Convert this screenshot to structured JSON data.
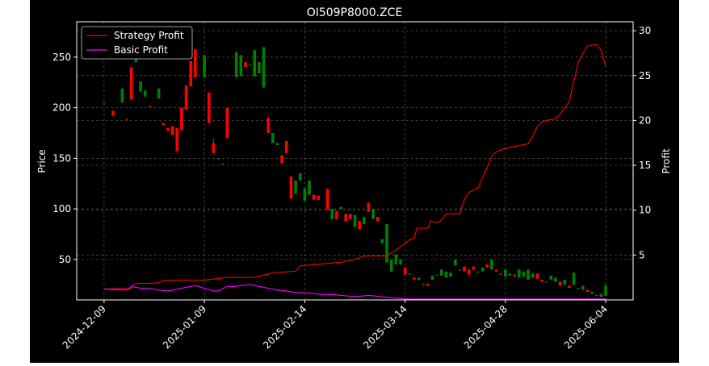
{
  "chart_data": {
    "type": "candlestick",
    "title": "OI509P8000.ZCE",
    "ylabel_left": "Price",
    "ylabel_right": "Profit",
    "xlabel": "",
    "ylim_left": [
      10,
      285
    ],
    "ylim_right": [
      0,
      31
    ],
    "y_ticks_left": [
      50,
      100,
      150,
      200,
      250
    ],
    "y_ticks_right": [
      5,
      10,
      15,
      20,
      25,
      30
    ],
    "x_ticks": [
      {
        "label": "2024-12-09",
        "t": 0
      },
      {
        "label": "2025-01-09",
        "t": 22
      },
      {
        "label": "2025-02-14",
        "t": 44
      },
      {
        "label": "2025-03-14",
        "t": 66
      },
      {
        "label": "2025-04-28",
        "t": 88
      },
      {
        "label": "2025-06-04",
        "t": 110
      }
    ],
    "x_range": [
      -6,
      116
    ],
    "grid": true,
    "legend_position": "upper-left",
    "colors": {
      "background": "#000000",
      "text": "#ffffff",
      "up": "#008000",
      "down": "#ff0000",
      "strategy": "#ff0000",
      "basic": "#ff00ff",
      "grid": "#555555"
    },
    "series": [
      {
        "name": "Strategy Profit",
        "axis": "right",
        "color": "#ff0000",
        "points": [
          [
            0,
            1.2
          ],
          [
            6,
            1.3
          ],
          [
            6.6,
            1.8
          ],
          [
            12,
            1.9
          ],
          [
            13,
            2.2
          ],
          [
            22,
            2.2
          ],
          [
            27,
            2.5
          ],
          [
            33,
            2.5
          ],
          [
            37,
            3.0
          ],
          [
            42,
            3.2
          ],
          [
            43,
            3.8
          ],
          [
            52,
            4.2
          ],
          [
            55,
            4.5
          ],
          [
            57,
            4.9
          ],
          [
            62,
            4.9
          ],
          [
            65,
            5.9
          ],
          [
            67,
            6.7
          ],
          [
            68,
            6.9
          ],
          [
            68.6,
            8.0
          ],
          [
            71,
            8.0
          ],
          [
            71.6,
            8.8
          ],
          [
            73,
            8.6
          ],
          [
            74,
            8.9
          ],
          [
            75,
            9.6
          ],
          [
            78,
            9.6
          ],
          [
            79,
            11.2
          ],
          [
            80,
            12.0
          ],
          [
            82,
            12.5
          ],
          [
            84,
            14.8
          ],
          [
            85,
            16.0
          ],
          [
            86,
            16.5
          ],
          [
            88,
            16.9
          ],
          [
            90,
            17.1
          ],
          [
            93,
            17.4
          ],
          [
            94,
            18.3
          ],
          [
            95,
            19.3
          ],
          [
            96,
            19.8
          ],
          [
            97,
            20.0
          ],
          [
            99,
            20.2
          ],
          [
            100,
            20.7
          ],
          [
            101,
            21.4
          ],
          [
            102,
            22.1
          ],
          [
            103,
            24.4
          ],
          [
            104,
            26.5
          ],
          [
            105,
            27.5
          ],
          [
            106,
            28.3
          ],
          [
            108,
            28.5
          ],
          [
            109,
            27.8
          ],
          [
            110,
            26.0
          ]
        ]
      },
      {
        "name": "Basic Profit",
        "axis": "right",
        "color": "#ff00ff",
        "points": [
          [
            0,
            1.2
          ],
          [
            5,
            1.1
          ],
          [
            6,
            1.5
          ],
          [
            8,
            1.3
          ],
          [
            10,
            1.3
          ],
          [
            12,
            1.1
          ],
          [
            14,
            1.0
          ],
          [
            17,
            1.3
          ],
          [
            20,
            1.6
          ],
          [
            22,
            1.3
          ],
          [
            24,
            1.0
          ],
          [
            25,
            1.0
          ],
          [
            27,
            1.5
          ],
          [
            29,
            1.5
          ],
          [
            30,
            1.6
          ],
          [
            32,
            1.7
          ],
          [
            34,
            1.5
          ],
          [
            36,
            1.3
          ],
          [
            38,
            1.1
          ],
          [
            40,
            1.0
          ],
          [
            42,
            0.8
          ],
          [
            44,
            0.8
          ],
          [
            46,
            0.7
          ],
          [
            48,
            0.6
          ],
          [
            50,
            0.6
          ],
          [
            52,
            0.5
          ],
          [
            54,
            0.4
          ],
          [
            56,
            0.4
          ],
          [
            58,
            0.5
          ],
          [
            60,
            0.4
          ],
          [
            62,
            0.3
          ],
          [
            64,
            0.2
          ],
          [
            66,
            0.1
          ],
          [
            70,
            0.1
          ],
          [
            75,
            0.1
          ],
          [
            80,
            0.1
          ],
          [
            88,
            0.1
          ],
          [
            95,
            0.1
          ],
          [
            100,
            0.1
          ],
          [
            110,
            0.1
          ]
        ]
      }
    ],
    "candles": [
      [
        0,
        205,
        205,
        205,
        205
      ],
      [
        2,
        197,
        192,
        197,
        192
      ],
      [
        4,
        205,
        219,
        219,
        205
      ],
      [
        5,
        189,
        188,
        189,
        188
      ],
      [
        6,
        240,
        208,
        240,
        208
      ],
      [
        7,
        245,
        250,
        250,
        245
      ],
      [
        8,
        216,
        226,
        226,
        216
      ],
      [
        9,
        211,
        217,
        217,
        211
      ],
      [
        10,
        202,
        201,
        202,
        201
      ],
      [
        12,
        209,
        219,
        219,
        209
      ],
      [
        13,
        185,
        183,
        185,
        183
      ],
      [
        14,
        180,
        177,
        180,
        177
      ],
      [
        15,
        182,
        173,
        182,
        173
      ],
      [
        16,
        180,
        157,
        180,
        157
      ],
      [
        17,
        200,
        178,
        200,
        178
      ],
      [
        18,
        222,
        198,
        222,
        198
      ],
      [
        19,
        246,
        221,
        246,
        221
      ],
      [
        20,
        258,
        230,
        258,
        230
      ],
      [
        22,
        230,
        252,
        252,
        230
      ],
      [
        23,
        215,
        185,
        215,
        185
      ],
      [
        24,
        165,
        155,
        170,
        155
      ],
      [
        25,
        150,
        150,
        150,
        150
      ],
      [
        26,
        145,
        145,
        145,
        145
      ],
      [
        27,
        200,
        170,
        200,
        170
      ],
      [
        29,
        230,
        255,
        255,
        230
      ],
      [
        30,
        231,
        252,
        252,
        231
      ],
      [
        31,
        245,
        240,
        245,
        240
      ],
      [
        32,
        243,
        243,
        243,
        243
      ],
      [
        33,
        231,
        257,
        257,
        231
      ],
      [
        34,
        234,
        245,
        245,
        234
      ],
      [
        35,
        220,
        260,
        260,
        220
      ],
      [
        36,
        190,
        175,
        190,
        175
      ],
      [
        37,
        165,
        175,
        175,
        165
      ],
      [
        38,
        163,
        165,
        165,
        163
      ],
      [
        39,
        153,
        145,
        153,
        145
      ],
      [
        40,
        167,
        155,
        167,
        155
      ],
      [
        41,
        132,
        110,
        132,
        110
      ],
      [
        42,
        115,
        128,
        128,
        115
      ],
      [
        43,
        128,
        135,
        135,
        128
      ],
      [
        44,
        108,
        120,
        120,
        108
      ],
      [
        45,
        114,
        128,
        128,
        114
      ],
      [
        46,
        114,
        109,
        114,
        109
      ],
      [
        47,
        113,
        109,
        113,
        109
      ],
      [
        49,
        120,
        99,
        120,
        99
      ],
      [
        50,
        90,
        100,
        100,
        90
      ],
      [
        51,
        98,
        90,
        98,
        90
      ],
      [
        52,
        100,
        102,
        102,
        100
      ],
      [
        53,
        95,
        88,
        95,
        88
      ],
      [
        54,
        95,
        90,
        95,
        90
      ],
      [
        55,
        82,
        94,
        94,
        82
      ],
      [
        56,
        88,
        80,
        88,
        80
      ],
      [
        57,
        85,
        92,
        92,
        85
      ],
      [
        58,
        106,
        97,
        106,
        97
      ],
      [
        59,
        90,
        100,
        100,
        90
      ],
      [
        60,
        92,
        88,
        92,
        88
      ],
      [
        61,
        66,
        70,
        70,
        66
      ],
      [
        62,
        47,
        85,
        85,
        47
      ],
      [
        63,
        38,
        50,
        50,
        38
      ],
      [
        64,
        45,
        55,
        55,
        45
      ],
      [
        65,
        45,
        50,
        50,
        45
      ],
      [
        66,
        42,
        35,
        42,
        35
      ],
      [
        67,
        36,
        36,
        36,
        36
      ],
      [
        68,
        32,
        30,
        32,
        30
      ],
      [
        69,
        30,
        32,
        32,
        30
      ],
      [
        70,
        25,
        26,
        26,
        25
      ],
      [
        71,
        26,
        24,
        26,
        24
      ],
      [
        72,
        30,
        34,
        34,
        30
      ],
      [
        73,
        35,
        35,
        35,
        35
      ],
      [
        74,
        34,
        40,
        40,
        34
      ],
      [
        75,
        32,
        38,
        38,
        32
      ],
      [
        76,
        33,
        37,
        37,
        33
      ],
      [
        77,
        44,
        50,
        50,
        44
      ],
      [
        78,
        40,
        40,
        40,
        40
      ],
      [
        79,
        43,
        38,
        43,
        38
      ],
      [
        80,
        40,
        35,
        40,
        35
      ],
      [
        81,
        43,
        40,
        43,
        40
      ],
      [
        82,
        37,
        38,
        38,
        37
      ],
      [
        83,
        38,
        42,
        42,
        38
      ],
      [
        84,
        45,
        42,
        45,
        42
      ],
      [
        85,
        40,
        50,
        50,
        40
      ],
      [
        86,
        40,
        38,
        40,
        38
      ],
      [
        87,
        36,
        35,
        36,
        35
      ],
      [
        88,
        33,
        40,
        40,
        33
      ],
      [
        89,
        34,
        36,
        36,
        34
      ],
      [
        90,
        35,
        33,
        35,
        33
      ],
      [
        91,
        32,
        40,
        40,
        32
      ],
      [
        92,
        33,
        38,
        38,
        33
      ],
      [
        93,
        30,
        40,
        40,
        30
      ],
      [
        94,
        32,
        36,
        36,
        32
      ],
      [
        95,
        36,
        31,
        36,
        31
      ],
      [
        96,
        30,
        28,
        30,
        28
      ],
      [
        97,
        28,
        28,
        28,
        28
      ],
      [
        98,
        30,
        34,
        34,
        30
      ],
      [
        99,
        28,
        32,
        32,
        28
      ],
      [
        100,
        28,
        24,
        28,
        24
      ],
      [
        101,
        25,
        30,
        30,
        25
      ],
      [
        102,
        24,
        22,
        24,
        22
      ],
      [
        103,
        25,
        37,
        37,
        25
      ],
      [
        104,
        22,
        22,
        22,
        22
      ],
      [
        105,
        20,
        24,
        24,
        20
      ],
      [
        106,
        20,
        18,
        20,
        18
      ],
      [
        107,
        16,
        18,
        18,
        16
      ],
      [
        108,
        14,
        15,
        15,
        14
      ],
      [
        109,
        13,
        16,
        16,
        13
      ],
      [
        110,
        14,
        24,
        28,
        14
      ]
    ]
  }
}
